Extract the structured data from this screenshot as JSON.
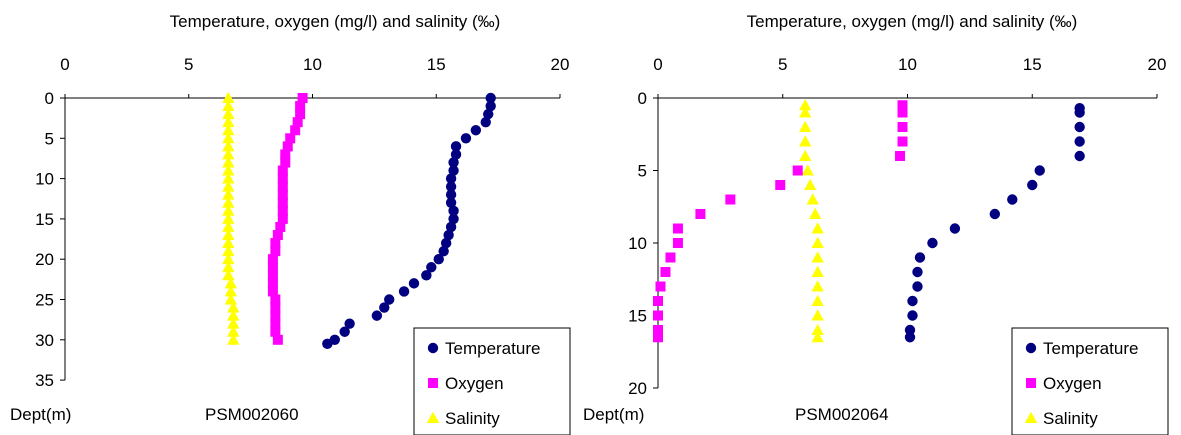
{
  "chart_data": [
    {
      "type": "scatter",
      "title": "Temperature, oxygen (mg/l) and salinity (‰)",
      "xlabel": "",
      "ylabel": "Dept(m)",
      "station": "PSM002060",
      "x_axis_position": "top",
      "y_inverted": true,
      "xlim": [
        0,
        20
      ],
      "ylim": [
        0,
        35
      ],
      "x_ticks": [
        "0",
        "5",
        "10",
        "15",
        "20"
      ],
      "y_ticks": [
        "0",
        "5",
        "10",
        "15",
        "20",
        "25",
        "30",
        "35"
      ],
      "grid": false,
      "legend": "bottom-right",
      "series": [
        {
          "name": "Temperature",
          "marker": "circle",
          "color": "#000080",
          "points": [
            [
              17.2,
              0
            ],
            [
              17.2,
              1
            ],
            [
              17.1,
              2
            ],
            [
              17.0,
              3
            ],
            [
              16.6,
              4
            ],
            [
              16.2,
              5
            ],
            [
              15.8,
              6
            ],
            [
              15.8,
              7
            ],
            [
              15.7,
              8
            ],
            [
              15.7,
              9
            ],
            [
              15.6,
              10
            ],
            [
              15.6,
              11
            ],
            [
              15.6,
              12
            ],
            [
              15.6,
              13
            ],
            [
              15.7,
              14
            ],
            [
              15.7,
              15
            ],
            [
              15.6,
              16
            ],
            [
              15.5,
              17
            ],
            [
              15.4,
              18
            ],
            [
              15.3,
              19
            ],
            [
              15.1,
              20
            ],
            [
              14.8,
              21
            ],
            [
              14.6,
              22
            ],
            [
              14.1,
              23
            ],
            [
              13.7,
              24
            ],
            [
              13.1,
              25
            ],
            [
              12.9,
              26
            ],
            [
              12.6,
              27
            ],
            [
              11.5,
              28
            ],
            [
              11.3,
              29
            ],
            [
              10.9,
              30
            ],
            [
              10.6,
              30.5
            ]
          ]
        },
        {
          "name": "Oxygen",
          "marker": "square",
          "color": "#ff00ff",
          "points": [
            [
              9.6,
              0
            ],
            [
              9.5,
              1
            ],
            [
              9.5,
              2
            ],
            [
              9.4,
              3
            ],
            [
              9.3,
              4
            ],
            [
              9.1,
              5
            ],
            [
              9.0,
              6
            ],
            [
              8.9,
              7
            ],
            [
              8.9,
              8
            ],
            [
              8.8,
              9
            ],
            [
              8.8,
              10
            ],
            [
              8.8,
              11
            ],
            [
              8.8,
              12
            ],
            [
              8.8,
              13
            ],
            [
              8.8,
              14
            ],
            [
              8.8,
              15
            ],
            [
              8.7,
              16
            ],
            [
              8.6,
              17
            ],
            [
              8.5,
              18
            ],
            [
              8.5,
              19
            ],
            [
              8.4,
              20
            ],
            [
              8.4,
              21
            ],
            [
              8.4,
              22
            ],
            [
              8.4,
              23
            ],
            [
              8.4,
              24
            ],
            [
              8.5,
              25
            ],
            [
              8.5,
              26
            ],
            [
              8.5,
              27
            ],
            [
              8.5,
              28
            ],
            [
              8.5,
              29
            ],
            [
              8.6,
              30
            ]
          ]
        },
        {
          "name": "Salinity",
          "marker": "triangle",
          "color": "#ffff00",
          "points": [
            [
              6.6,
              0
            ],
            [
              6.6,
              1
            ],
            [
              6.6,
              2
            ],
            [
              6.6,
              3
            ],
            [
              6.6,
              4
            ],
            [
              6.6,
              5
            ],
            [
              6.6,
              6
            ],
            [
              6.6,
              7
            ],
            [
              6.6,
              8
            ],
            [
              6.6,
              9
            ],
            [
              6.6,
              10
            ],
            [
              6.6,
              11
            ],
            [
              6.6,
              12
            ],
            [
              6.6,
              13
            ],
            [
              6.6,
              14
            ],
            [
              6.6,
              15
            ],
            [
              6.6,
              16
            ],
            [
              6.6,
              17
            ],
            [
              6.6,
              18
            ],
            [
              6.6,
              19
            ],
            [
              6.6,
              20
            ],
            [
              6.6,
              21
            ],
            [
              6.6,
              22
            ],
            [
              6.7,
              23
            ],
            [
              6.7,
              24
            ],
            [
              6.7,
              25
            ],
            [
              6.8,
              26
            ],
            [
              6.8,
              27
            ],
            [
              6.8,
              28
            ],
            [
              6.8,
              29
            ],
            [
              6.8,
              30
            ]
          ]
        }
      ]
    },
    {
      "type": "scatter",
      "title": "Temperature, oxygen (mg/l) and salinity (‰)",
      "xlabel": "",
      "ylabel": "Dept(m)",
      "station": "PSM002064",
      "x_axis_position": "top",
      "y_inverted": true,
      "xlim": [
        0,
        20
      ],
      "ylim": [
        0,
        20
      ],
      "x_ticks": [
        "0",
        "5",
        "10",
        "15",
        "20"
      ],
      "y_ticks": [
        "0",
        "5",
        "10",
        "15",
        "20"
      ],
      "grid": false,
      "legend": "bottom-right",
      "series": [
        {
          "name": "Temperature",
          "marker": "circle",
          "color": "#000080",
          "points": [
            [
              16.9,
              0.7
            ],
            [
              16.9,
              1
            ],
            [
              16.9,
              2
            ],
            [
              16.9,
              3
            ],
            [
              16.9,
              4
            ],
            [
              15.3,
              5
            ],
            [
              15.0,
              6
            ],
            [
              14.2,
              7
            ],
            [
              13.5,
              8
            ],
            [
              11.9,
              9
            ],
            [
              11.0,
              10
            ],
            [
              10.5,
              11
            ],
            [
              10.4,
              12
            ],
            [
              10.4,
              13
            ],
            [
              10.2,
              14
            ],
            [
              10.2,
              15
            ],
            [
              10.1,
              16
            ],
            [
              10.1,
              16.5
            ]
          ]
        },
        {
          "name": "Oxygen",
          "marker": "square",
          "color": "#ff00ff",
          "points": [
            [
              9.8,
              0.5
            ],
            [
              9.8,
              1
            ],
            [
              9.8,
              2
            ],
            [
              9.8,
              3
            ],
            [
              9.7,
              4
            ],
            [
              5.6,
              5
            ],
            [
              4.9,
              6
            ],
            [
              2.9,
              7
            ],
            [
              1.7,
              8
            ],
            [
              0.8,
              9
            ],
            [
              0.8,
              10
            ],
            [
              0.5,
              11
            ],
            [
              0.3,
              12
            ],
            [
              0.1,
              13
            ],
            [
              0.0,
              14
            ],
            [
              0.0,
              15
            ],
            [
              0.0,
              16
            ],
            [
              0.0,
              16.5
            ]
          ]
        },
        {
          "name": "Salinity",
          "marker": "triangle",
          "color": "#ffff00",
          "points": [
            [
              5.9,
              0.5
            ],
            [
              5.9,
              1
            ],
            [
              5.9,
              2
            ],
            [
              5.9,
              3
            ],
            [
              5.9,
              4
            ],
            [
              6.0,
              5
            ],
            [
              6.1,
              6
            ],
            [
              6.2,
              7
            ],
            [
              6.3,
              8
            ],
            [
              6.4,
              9
            ],
            [
              6.4,
              10
            ],
            [
              6.4,
              11
            ],
            [
              6.4,
              12
            ],
            [
              6.4,
              13
            ],
            [
              6.4,
              14
            ],
            [
              6.4,
              15
            ],
            [
              6.4,
              16
            ],
            [
              6.4,
              16.5
            ]
          ]
        }
      ]
    }
  ]
}
